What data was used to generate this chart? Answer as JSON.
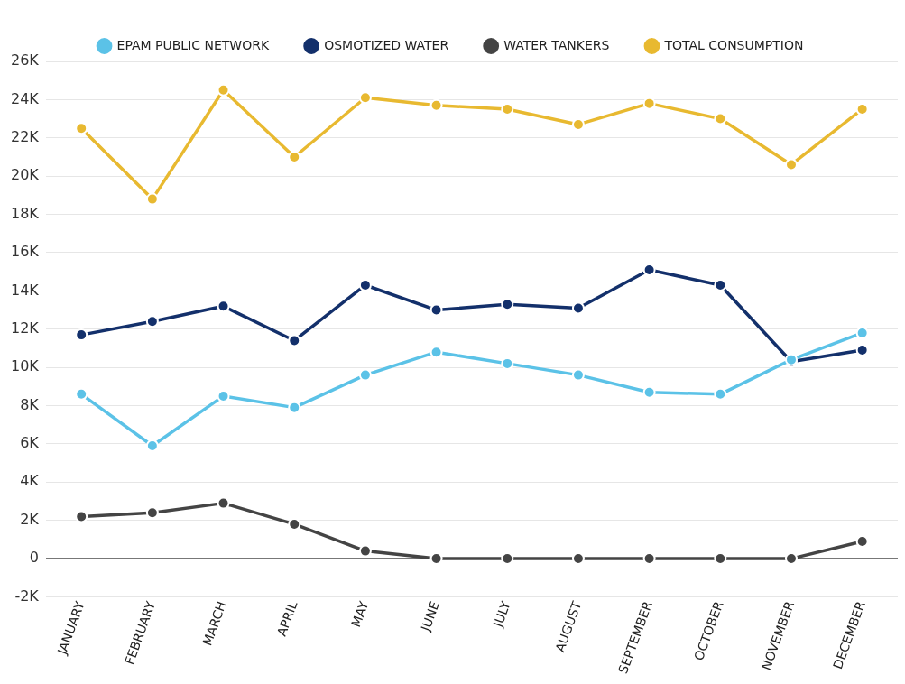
{
  "chart_data": {
    "type": "line",
    "categories": [
      "JANUARY",
      "FEBRUARY",
      "MARCH",
      "APRIL",
      "MAY",
      "JUNE",
      "JULY",
      "AUGUST",
      "SEPTEMBER",
      "OCTOBER",
      "NOVEMBER",
      "DECEMBER"
    ],
    "series": [
      {
        "name": "EPAM PUBLIC NETWORK",
        "color": "#5bc2e7",
        "values": [
          8600,
          5900,
          8500,
          7900,
          9600,
          10800,
          10200,
          9600,
          8700,
          8600,
          10400,
          11800
        ]
      },
      {
        "name": "OSMOTIZED WATER",
        "color": "#13306b",
        "values": [
          11700,
          12400,
          13200,
          11400,
          14300,
          13000,
          13300,
          13100,
          15100,
          14300,
          10300,
          10900
        ]
      },
      {
        "name": "WATER TANKERS",
        "color": "#444444",
        "values": [
          2200,
          2400,
          2900,
          1800,
          400,
          0,
          0,
          0,
          0,
          0,
          0,
          900
        ]
      },
      {
        "name": "TOTAL CONSUMPTION",
        "color": "#e8b930",
        "values": [
          22500,
          18800,
          24500,
          21000,
          24100,
          23700,
          23500,
          22700,
          23800,
          23000,
          20600,
          23500
        ]
      }
    ],
    "ylim": [
      -2000,
      26000
    ],
    "yticks": [
      {
        "value": -2000,
        "label": "-2K"
      },
      0,
      {
        "value": 2000,
        "label": "2K"
      },
      {
        "value": 4000,
        "label": "4K"
      },
      {
        "value": 6000,
        "label": "6K"
      },
      {
        "value": 8000,
        "label": "8K"
      },
      {
        "value": 10000,
        "label": "10K"
      },
      {
        "value": 12000,
        "label": "12K"
      },
      {
        "value": 14000,
        "label": "14K"
      },
      {
        "value": 16000,
        "label": "16K"
      },
      {
        "value": 18000,
        "label": "18K"
      },
      {
        "value": 20000,
        "label": "20K"
      },
      {
        "value": 22000,
        "label": "22K"
      },
      {
        "value": 24000,
        "label": "24K"
      },
      {
        "value": 26000,
        "label": "26K"
      }
    ],
    "grid": "y",
    "legend": "top",
    "marker": "circle",
    "line_style": "solid"
  }
}
